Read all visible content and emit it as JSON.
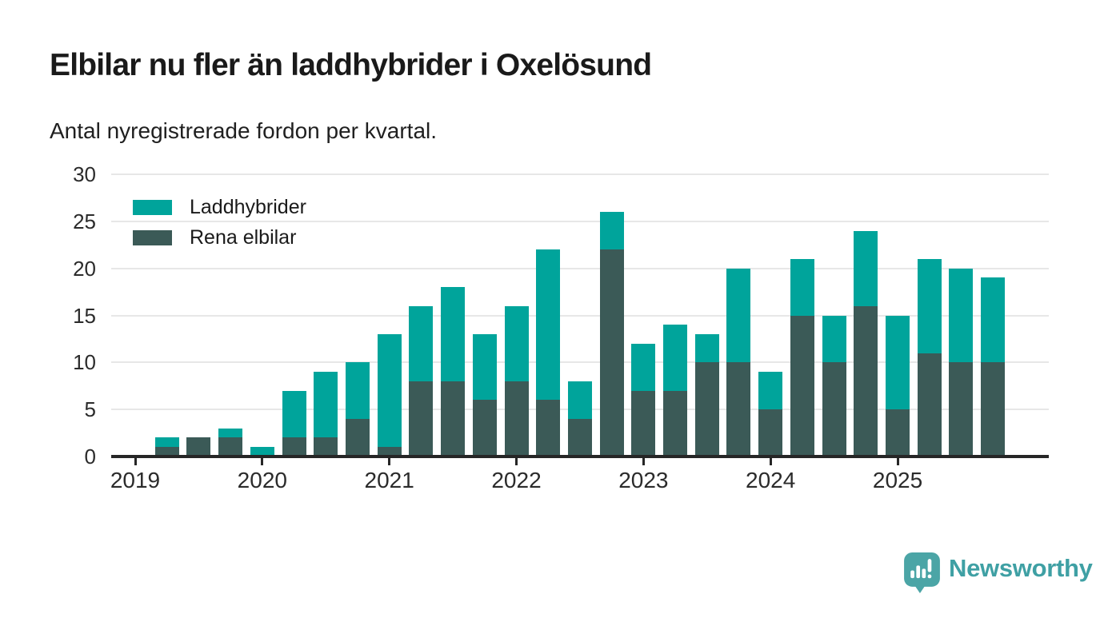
{
  "title": "Elbilar nu fler än laddhybrider i Oxelösund",
  "subtitle": "Antal nyregistrerade fordon per kvartal.",
  "legend": [
    {
      "label": "Laddhybrider",
      "color": "#00a49b"
    },
    {
      "label": "Rena elbilar",
      "color": "#3b5a57"
    }
  ],
  "chart_data": {
    "type": "bar",
    "stacked": true,
    "title": "Elbilar nu fler än laddhybrider i Oxelösund",
    "subtitle": "Antal nyregistrerade fordon per kvartal.",
    "x": [
      "2019 Q1",
      "2019 Q2",
      "2019 Q3",
      "2019 Q4",
      "2020 Q1",
      "2020 Q2",
      "2020 Q3",
      "2020 Q4",
      "2021 Q1",
      "2021 Q2",
      "2021 Q3",
      "2021 Q4",
      "2022 Q1",
      "2022 Q2",
      "2022 Q3",
      "2022 Q4",
      "2023 Q1",
      "2023 Q2",
      "2023 Q3",
      "2023 Q4",
      "2024 Q1",
      "2024 Q2",
      "2024 Q3",
      "2024 Q4",
      "2025 Q1",
      "2025 Q2",
      "2025 Q3",
      "2025 Q4"
    ],
    "series": [
      {
        "name": "Laddhybrider",
        "color": "#00a49b",
        "values": [
          0,
          1,
          0,
          1,
          1,
          5,
          7,
          6,
          12,
          8,
          10,
          7,
          8,
          16,
          4,
          4,
          5,
          7,
          3,
          10,
          4,
          6,
          5,
          8,
          10,
          10,
          10,
          9
        ]
      },
      {
        "name": "Rena elbilar",
        "color": "#3b5a57",
        "values": [
          0,
          1,
          2,
          2,
          0,
          2,
          2,
          4,
          1,
          8,
          8,
          6,
          8,
          6,
          4,
          22,
          7,
          7,
          10,
          10,
          5,
          15,
          10,
          16,
          5,
          11,
          10,
          10
        ]
      }
    ],
    "stack_bottom_to_top": [
      "Rena elbilar",
      "Laddhybrider"
    ],
    "totals": [
      0,
      2,
      2,
      3,
      1,
      7,
      9,
      10,
      13,
      16,
      18,
      13,
      16,
      22,
      8,
      26,
      12,
      14,
      13,
      20,
      9,
      21,
      15,
      24,
      15,
      21,
      20,
      19
    ],
    "y_ticks": [
      0,
      5,
      10,
      15,
      20,
      25,
      30
    ],
    "year_ticks": [
      "2019",
      "2020",
      "2021",
      "2022",
      "2023",
      "2024",
      "2025"
    ],
    "ylim": [
      0,
      30
    ],
    "xlabel": "",
    "ylabel": "",
    "grid": "horizontal",
    "legend_position": "top-left"
  },
  "logo": {
    "text": "Newsworthy",
    "text_color": "#3fa0a4",
    "icon_color": "#4ba5a6",
    "icon": "newsworthy-speech-bubble-bar-chart-icon"
  },
  "colors": {
    "background": "#ffffff",
    "axis": "#262626",
    "gridline": "#e7e7e7",
    "text": "#1a1a1a"
  }
}
